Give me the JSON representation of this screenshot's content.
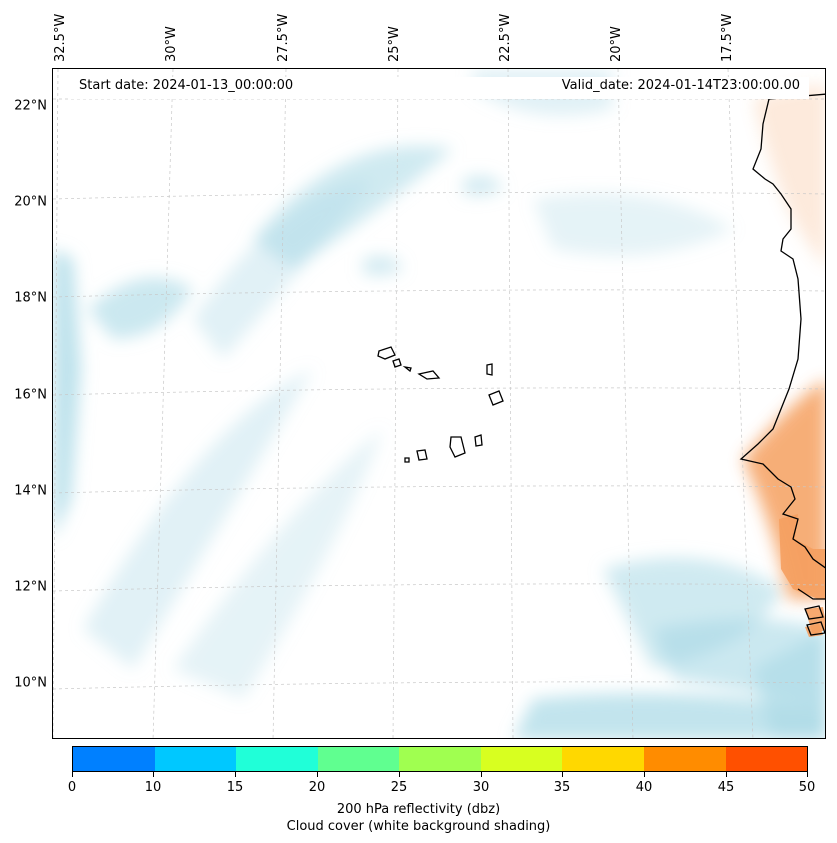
{
  "header": {
    "start_date": "Start date: 2024-01-13_00:00:00",
    "valid_date": "Valid_date: 2024-01-14T23:00:00.00"
  },
  "axes": {
    "lat_labels": [
      "22°N",
      "20°N",
      "18°N",
      "16°N",
      "14°N",
      "12°N",
      "10°N"
    ],
    "lon_labels": [
      "32.5°W",
      "30°W",
      "27.5°W",
      "25°W",
      "22.5°W",
      "20°W",
      "17.5°W"
    ]
  },
  "colorbar": {
    "title": "200 hPa reflectivity (dbz)",
    "subtitle": "Cloud cover (white background shading)",
    "ticks": [
      "0",
      "10",
      "15",
      "20",
      "25",
      "30",
      "35",
      "40",
      "45",
      "50"
    ],
    "colors": [
      "#0080ff",
      "#00c8ff",
      "#20ffd8",
      "#60ff90",
      "#a0ff50",
      "#d8ff20",
      "#ffd800",
      "#ff8c00",
      "#ff5000"
    ]
  },
  "map_colors": {
    "cloud": "#a8d8e6",
    "warm_land": "#f5a060",
    "coast": "#000000",
    "grid": "#c8c8c8"
  }
}
